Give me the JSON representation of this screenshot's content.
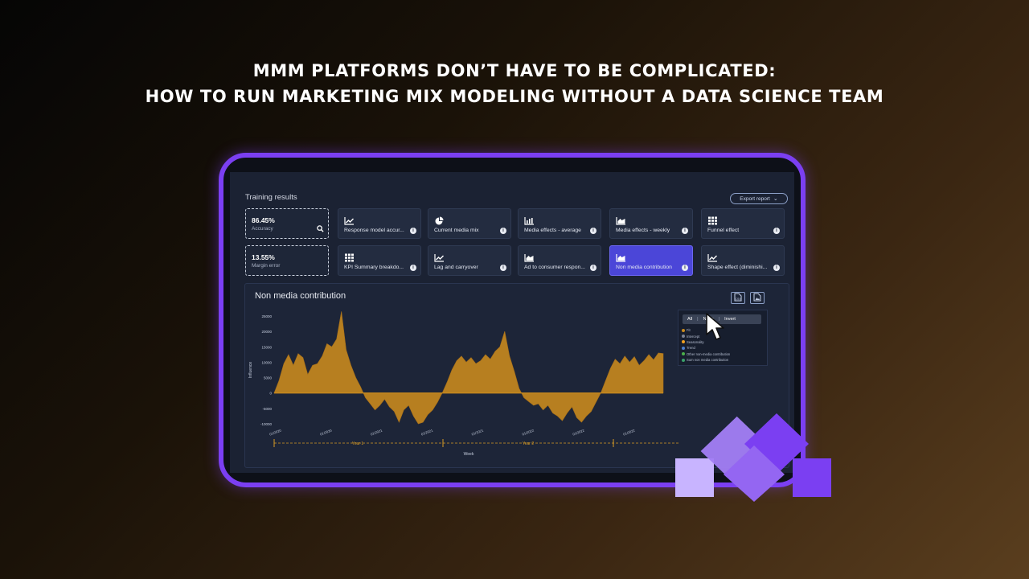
{
  "headline": {
    "line1": "MMM PLATFORMS DON’T HAVE TO BE COMPLICATED:",
    "line2": "HOW TO RUN MARKETING MIX MODELING WITHOUT A DATA SCIENCE TEAM"
  },
  "colors": {
    "accent": "#7b3ff2",
    "active_card": "#4b46d8",
    "area": "#c98a1e",
    "logo_light": "#c8b4ff",
    "logo_mid": "#a37ef5",
    "logo_dark": "#7b3ff2"
  },
  "dashboard": {
    "title": "Training results",
    "export_label": "Export report",
    "metrics": [
      {
        "value": "86.45%",
        "label": "Accuracy"
      },
      {
        "value": "13.55%",
        "label": "Margin error"
      }
    ],
    "cards": [
      {
        "label": "Response model accur...",
        "icon": "line-chart-icon"
      },
      {
        "label": "Current media mix",
        "icon": "pie-chart-icon"
      },
      {
        "label": "Media effects - average",
        "icon": "bar-chart-icon"
      },
      {
        "label": "Media effects - weekly",
        "icon": "area-chart-icon"
      },
      {
        "label": "Funnel effect",
        "icon": "grid-icon"
      },
      {
        "label": "KPI Summary breakdo...",
        "icon": "grid-icon"
      },
      {
        "label": "Lag and carryover",
        "icon": "line-chart-icon"
      },
      {
        "label": "Ad to consumer respon...",
        "icon": "area-chart-icon"
      },
      {
        "label": "Non media contribution",
        "icon": "area-chart-icon",
        "active": true
      },
      {
        "label": "Shape effect (diminishi...",
        "icon": "line-chart-icon"
      }
    ],
    "info_glyph": "i"
  },
  "panel": {
    "title": "Non media contribution",
    "legend": {
      "tabs": [
        "All",
        "None",
        "Invert"
      ],
      "items": [
        {
          "label": "Fit",
          "color": "#c98a1e"
        },
        {
          "label": "Intercept",
          "color": "#7a8294"
        },
        {
          "label": "Seasonality",
          "color": "#f0a020"
        },
        {
          "label": "Trend",
          "color": "#4a7fd0"
        },
        {
          "label": "Other non-media contribution",
          "color": "#4bb04b"
        },
        {
          "label": "Sum non media contribution",
          "color": "#3aa06a"
        }
      ]
    }
  },
  "chart_data": {
    "type": "area",
    "ylabel": "Influence",
    "xlabel": "Week",
    "ylim": [
      -10000,
      25000
    ],
    "yticks": [
      25000,
      20000,
      15000,
      10000,
      5000,
      0,
      -5000,
      -10000
    ],
    "xticks": [
      "01/2020",
      "01/2020",
      "01/2021",
      "01/2021",
      "01/2021",
      "01/2022",
      "01/2022",
      "01/2022"
    ],
    "year_labels": [
      "Year 1",
      "Year 2"
    ],
    "values": [
      0,
      4000,
      9500,
      12500,
      9000,
      12800,
      11500,
      6000,
      9000,
      9500,
      12000,
      16000,
      15000,
      17500,
      26500,
      14000,
      9000,
      5000,
      2000,
      -1500,
      -3500,
      -5500,
      -4000,
      -2000,
      -4500,
      -6000,
      -9500,
      -5500,
      -4000,
      -7500,
      -10000,
      -9500,
      -7000,
      -5500,
      -3000,
      0,
      3500,
      7500,
      10500,
      12000,
      10000,
      11500,
      9500,
      10500,
      12500,
      11000,
      13500,
      15000,
      20000,
      12000,
      7000,
      1500,
      -1500,
      -2800,
      -4000,
      -3500,
      -5500,
      -4000,
      -6500,
      -7500,
      -9000,
      -6500,
      -4500,
      -8000,
      -9500,
      -7500,
      -6000,
      -3000,
      0,
      4000,
      8000,
      11000,
      9500,
      12000,
      10000,
      11800,
      9000,
      10500,
      12500,
      10800,
      13000,
      12800
    ]
  }
}
